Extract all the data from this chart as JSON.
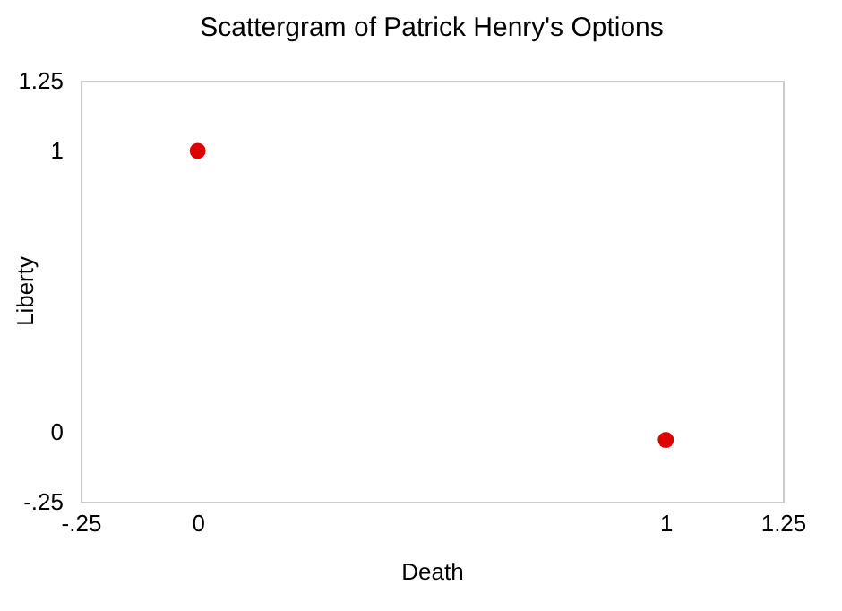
{
  "chart_data": {
    "type": "scatter",
    "title": "Scattergram of Patrick Henry's Options",
    "xlabel": "Death",
    "ylabel": "Liberty",
    "x": [
      0,
      1
    ],
    "series": [
      {
        "color": "#dd0000",
        "values": [
          1,
          -0.03
        ]
      }
    ],
    "xlim": [
      -0.25,
      1.25
    ],
    "xticks": [
      {
        "value": -0.25,
        "label": "-.25"
      },
      0,
      1,
      1.25
    ],
    "ylim": [
      -0.25,
      1.25
    ],
    "yticks": [
      {
        "value": -0.25,
        "label": "-.25"
      },
      0,
      1,
      1.25
    ],
    "grid": false,
    "marker": "circle"
  }
}
